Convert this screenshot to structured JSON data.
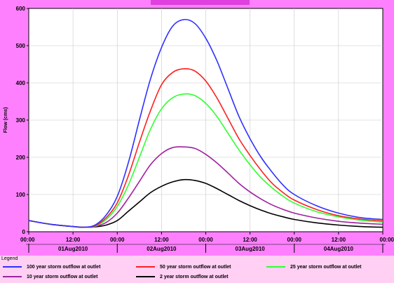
{
  "chart_data": {
    "type": "line",
    "title": "",
    "xlabel": "",
    "ylabel": "Flow (cms)",
    "ylim": [
      0,
      600
    ],
    "yticks": [
      0,
      100,
      200,
      300,
      400,
      500,
      600
    ],
    "xlim_hours": [
      0,
      96
    ],
    "x_tick_labels": [
      "00:00",
      "12:00",
      "00:00",
      "12:00",
      "00:00",
      "12:00",
      "00:00",
      "12:00",
      "00:00"
    ],
    "date_labels": [
      "01Aug2010",
      "02Aug2010",
      "03Aug2010",
      "04Aug2010"
    ],
    "grid": true,
    "legend_position": "bottom",
    "x_hours": [
      0,
      6,
      12,
      15,
      18,
      21,
      24,
      27,
      30,
      33,
      36,
      39,
      42,
      45,
      48,
      51,
      54,
      57,
      60,
      63,
      66,
      69,
      72,
      78,
      84,
      90,
      96
    ],
    "series": [
      {
        "name": "100 year storm outflow at outlet",
        "color": "#3030ff",
        "values": [
          30,
          20,
          14,
          12,
          18,
          45,
          95,
          185,
          300,
          410,
          495,
          552,
          570,
          560,
          520,
          460,
          385,
          310,
          250,
          200,
          160,
          125,
          100,
          70,
          50,
          38,
          33
        ]
      },
      {
        "name": "50 year storm outflow at outlet",
        "color": "#ff2020",
        "values": [
          30,
          20,
          14,
          12,
          16,
          38,
          78,
          150,
          240,
          325,
          395,
          428,
          438,
          432,
          405,
          360,
          305,
          250,
          205,
          165,
          130,
          105,
          85,
          60,
          43,
          34,
          29
        ]
      },
      {
        "name": "25 year storm outflow at outlet",
        "color": "#30ff30",
        "values": [
          30,
          20,
          14,
          12,
          15,
          33,
          68,
          125,
          200,
          275,
          330,
          360,
          370,
          366,
          345,
          310,
          265,
          220,
          180,
          145,
          118,
          95,
          77,
          54,
          40,
          31,
          26
        ]
      },
      {
        "name": "10 year storm outflow at outlet",
        "color": "#a020a0",
        "values": [
          30,
          20,
          14,
          12,
          14,
          25,
          50,
          90,
          135,
          180,
          210,
          226,
          228,
          224,
          208,
          185,
          158,
          130,
          107,
          88,
          72,
          60,
          50,
          37,
          28,
          23,
          20
        ]
      },
      {
        "name": "2 year  storm outflow at outlet",
        "color": "#000000",
        "values": [
          30,
          20,
          14,
          12,
          13,
          18,
          30,
          55,
          80,
          105,
          122,
          134,
          140,
          138,
          130,
          116,
          100,
          84,
          70,
          58,
          48,
          40,
          33,
          24,
          18,
          14,
          12
        ]
      }
    ]
  },
  "legend": {
    "title": "Legend"
  }
}
